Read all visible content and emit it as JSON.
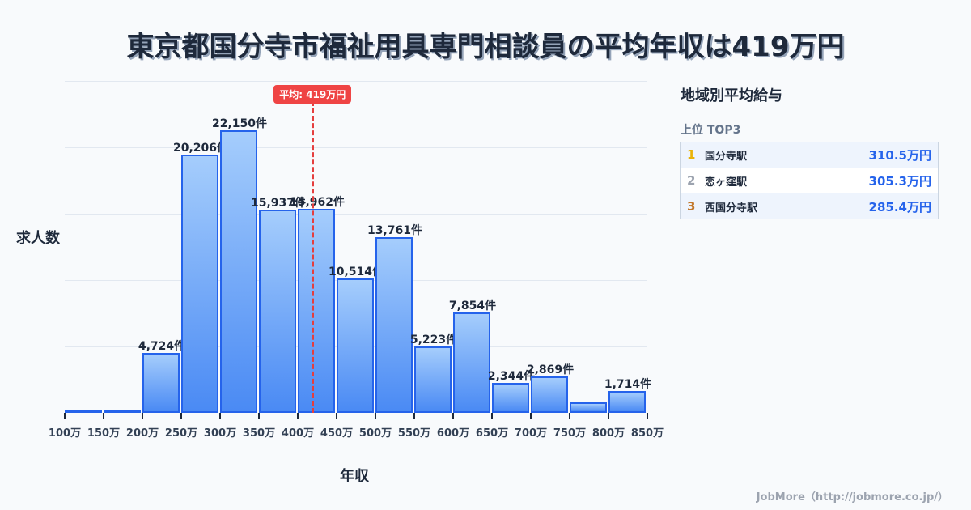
{
  "title": "東京都国分寺市福祉用具専門相談員の平均年収は419万円",
  "axis": {
    "ylabel": "求人数",
    "xlabel": "年収"
  },
  "average": {
    "label": "平均: 419万円",
    "value": 419,
    "color": "#ef4444"
  },
  "panel": {
    "title": "地域別平均給与",
    "subtitle": "上位 TOP3",
    "ranks": [
      {
        "rank": "1",
        "name": "国分寺駅",
        "value": "310.5万円",
        "color": "#eab308"
      },
      {
        "rank": "2",
        "name": "恋ヶ窪駅",
        "value": "305.3万円",
        "color": "#9ca3af"
      },
      {
        "rank": "3",
        "name": "西国分寺駅",
        "value": "285.4万円",
        "color": "#c2772a"
      }
    ]
  },
  "footer": "JobMore（http://jobmore.co.jp/）",
  "chart_data": {
    "type": "bar",
    "title": "東京都国分寺市福祉用具専門相談員の平均年収は419万円",
    "xlabel": "年収",
    "ylabel": "求人数",
    "categories": [
      "100-150万",
      "150-200万",
      "200-250万",
      "250-300万",
      "300-350万",
      "350-400万",
      "400-450万",
      "450-500万",
      "500-550万",
      "550-600万",
      "600-650万",
      "650-700万",
      "700-750万",
      "750-800万",
      "800-850万"
    ],
    "tick_labels": [
      "100万",
      "150万",
      "200万",
      "250万",
      "300万",
      "350万",
      "400万",
      "450万",
      "500万",
      "550万",
      "600万",
      "650万",
      "700万",
      "750万",
      "800万",
      "850万"
    ],
    "values": [
      80,
      80,
      4724,
      20206,
      22150,
      15937,
      15962,
      10514,
      13761,
      5223,
      7854,
      2344,
      2869,
      800,
      1714
    ],
    "labels": [
      "",
      "",
      "4,724件",
      "20,206件",
      "22,150件",
      "15,937件",
      "15,962件",
      "10,514件",
      "13,761件",
      "5,223件",
      "7,854件",
      "2,344件",
      "2,869件",
      "",
      "1,714件"
    ],
    "ylim": [
      0,
      26000
    ],
    "grid": true,
    "average_line": 419,
    "bar_color": "#4a8af4",
    "bar_border": "#2563eb"
  }
}
